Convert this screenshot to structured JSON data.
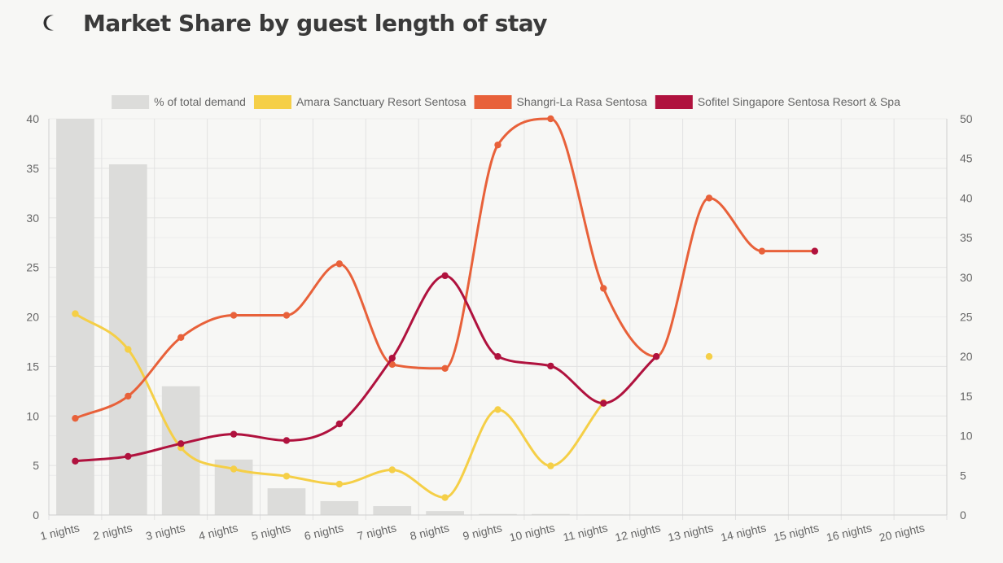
{
  "page": {
    "title": "Market Share by guest length of stay",
    "icon": "moon-icon"
  },
  "chart_data": {
    "type": "bar",
    "title": "Market Share by guest length of stay",
    "categories": [
      "1 nights",
      "2 nights",
      "3 nights",
      "4 nights",
      "5 nights",
      "6 nights",
      "7 nights",
      "8 nights",
      "9 nights",
      "10 nights",
      "11 nights",
      "12 nights",
      "13 nights",
      "14 nights",
      "15 nights",
      "16 nights",
      "20 nights"
    ],
    "y_left": {
      "min": 0,
      "max": 40,
      "ticks": [
        0,
        5,
        10,
        15,
        20,
        25,
        30,
        35,
        40
      ]
    },
    "y_right": {
      "min": 0,
      "max": 50,
      "ticks": [
        0,
        5,
        10,
        15,
        20,
        25,
        30,
        35,
        40,
        45,
        50
      ]
    },
    "grid": true,
    "legend_position": "top",
    "series": [
      {
        "name": "% of total demand",
        "kind": "bar",
        "axis": "left",
        "color": "#dcdcda",
        "values": [
          40.0,
          35.4,
          13.0,
          5.6,
          2.7,
          1.4,
          0.9,
          0.4,
          0.1,
          0.1,
          0.05,
          0,
          0,
          0,
          0,
          0,
          0
        ]
      },
      {
        "name": "Amara Sanctuary Resort Sentosa",
        "kind": "line",
        "axis": "right",
        "color": "#f5cf47",
        "values": [
          25.4,
          20.9,
          8.5,
          5.8,
          4.9,
          3.9,
          5.7,
          2.2,
          13.3,
          6.2,
          14.2,
          null,
          20.0,
          null,
          null,
          null,
          null
        ]
      },
      {
        "name": "Shangri-La Rasa Sentosa",
        "kind": "line",
        "axis": "right",
        "color": "#e8613a",
        "values": [
          12.2,
          15.0,
          22.4,
          25.2,
          25.2,
          31.7,
          19.0,
          18.5,
          46.7,
          50.0,
          28.6,
          20.0,
          40.0,
          33.3,
          33.3,
          null,
          null
        ]
      },
      {
        "name": "Sofitel Singapore Sentosa Resort & Spa",
        "kind": "line",
        "axis": "right",
        "color": "#b0123e",
        "values": [
          6.8,
          7.4,
          9.0,
          10.2,
          9.4,
          11.5,
          19.8,
          30.2,
          20.0,
          18.8,
          14.1,
          20.0,
          null,
          null,
          33.3,
          null,
          null
        ]
      }
    ]
  }
}
